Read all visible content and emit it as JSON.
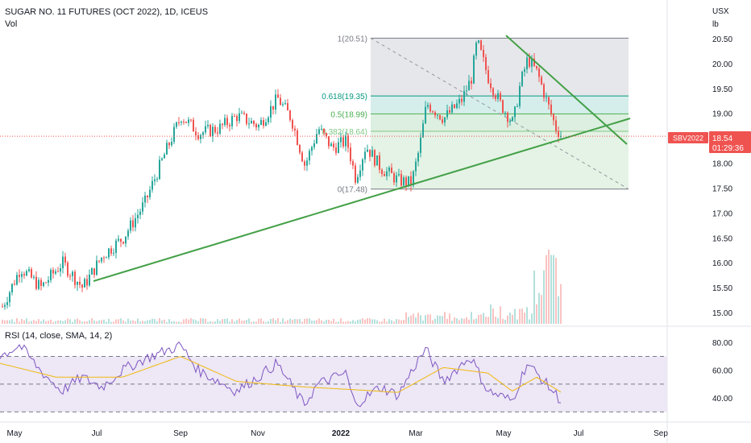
{
  "header": {
    "title": "SUGAR NO. 11 FUTURES (OCT 2022), 1D, ICEUS",
    "volume_label": "Vol"
  },
  "price_scale": {
    "unit_top": "USX",
    "unit_bottom": "lb",
    "ticks": [
      "20.50",
      "20.00",
      "19.50",
      "19.00",
      "18.50",
      "18.00",
      "17.50",
      "17.00",
      "16.50",
      "16.00",
      "15.50",
      "15.00"
    ]
  },
  "last_price": {
    "symbol": "SBV2022",
    "price": "18.54",
    "countdown": "01:29:36",
    "color": "#ef5350"
  },
  "fib": {
    "levels": [
      {
        "label": "1(20.51)",
        "value": 20.51,
        "color": "#787b86"
      },
      {
        "label": "0.618(19.35)",
        "value": 19.35,
        "color": "#089981"
      },
      {
        "label": "0.5(18.99)",
        "value": 18.99,
        "color": "#4caf50"
      },
      {
        "label": "0.382(18.64)",
        "value": 18.64,
        "color": "#81c784"
      },
      {
        "label": "0(17.48)",
        "value": 17.48,
        "color": "#787b86"
      }
    ]
  },
  "rsi": {
    "label": "RSI (14, close, SMA, 14, 2)",
    "ticks": [
      "80.00",
      "60.00",
      "40.00"
    ],
    "upper_band": 70,
    "middle_band": 50,
    "lower_band": 30
  },
  "time_axis": {
    "labels": [
      "May",
      "Jul",
      "Sep",
      "Nov",
      "2022",
      "Mar",
      "May",
      "Jul",
      "Sep"
    ]
  },
  "colors": {
    "up": "#26a69a",
    "down": "#ef5350",
    "trendline": "#43a047",
    "rsi_line": "#7e57c2",
    "rsi_ma": "#f0b90b",
    "rsi_band_fill": "#ede7f6"
  },
  "chart_data": {
    "type": "candlestick",
    "title": "SUGAR NO. 11 FUTURES (OCT 2022), 1D, ICEUS",
    "ylabel": "USX/lb",
    "ylim": [
      14.85,
      20.95
    ],
    "x": [
      "2021-05",
      "2021-07",
      "2021-09",
      "2021-11",
      "2022-01",
      "2022-03",
      "2022-05",
      "2022-07",
      "2022-09"
    ],
    "series": [
      {
        "name": "SBV2022",
        "points": [
          [
            "2021-04-20",
            15.05
          ],
          [
            "2021-05-05",
            15.9
          ],
          [
            "2021-05-20",
            15.5
          ],
          [
            "2021-06-05",
            16.0
          ],
          [
            "2021-06-20",
            15.5
          ],
          [
            "2021-07-05",
            16.15
          ],
          [
            "2021-07-20",
            16.5
          ],
          [
            "2021-08-05",
            17.2
          ],
          [
            "2021-08-20",
            18.2
          ],
          [
            "2021-09-01",
            18.95
          ],
          [
            "2021-09-15",
            18.6
          ],
          [
            "2021-10-01",
            18.7
          ],
          [
            "2021-10-15",
            18.95
          ],
          [
            "2021-11-01",
            18.75
          ],
          [
            "2021-11-15",
            19.3
          ],
          [
            "2021-11-25",
            18.9
          ],
          [
            "2021-12-05",
            17.95
          ],
          [
            "2021-12-15",
            18.7
          ],
          [
            "2021-12-25",
            18.3
          ],
          [
            "2022-01-05",
            18.45
          ],
          [
            "2022-01-12",
            17.7
          ],
          [
            "2022-01-20",
            18.35
          ],
          [
            "2022-02-01",
            17.9
          ],
          [
            "2022-02-15",
            17.65
          ],
          [
            "2022-02-25",
            17.6
          ],
          [
            "2022-03-03",
            18.3
          ],
          [
            "2022-03-08",
            19.2
          ],
          [
            "2022-03-20",
            18.9
          ],
          [
            "2022-04-01",
            19.25
          ],
          [
            "2022-04-08",
            19.7
          ],
          [
            "2022-04-12",
            20.45
          ],
          [
            "2022-04-20",
            19.7
          ],
          [
            "2022-04-28",
            19.2
          ],
          [
            "2022-05-08",
            18.8
          ],
          [
            "2022-05-14",
            19.6
          ],
          [
            "2022-05-20",
            20.1
          ],
          [
            "2022-05-28",
            19.8
          ],
          [
            "2022-06-05",
            19.2
          ],
          [
            "2022-06-12",
            18.7
          ],
          [
            "2022-06-17",
            18.54
          ]
        ]
      }
    ],
    "annotations": {
      "fibonacci_retracement": [
        20.51,
        19.35,
        18.99,
        18.64,
        17.48
      ],
      "ascending_trendline": [
        [
          "2021-07-01",
          15.6
        ],
        [
          "2022-08-15",
          18.9
        ]
      ],
      "descending_trendline": [
        [
          "2022-05-01",
          20.55
        ],
        [
          "2022-08-10",
          18.4
        ]
      ]
    },
    "volume": [
      [
        "2022-04-01",
        16.0
      ],
      [
        "2022-05-20",
        15.95
      ],
      [
        "2022-06-01",
        16.4
      ],
      [
        "2022-06-12",
        16.3
      ]
    ],
    "rsi_ylim": [
      25,
      90
    ],
    "rsi_values": [
      [
        "2021-04-20",
        70
      ],
      [
        "2021-05-05",
        78
      ],
      [
        "2021-05-20",
        60
      ],
      [
        "2021-06-05",
        45
      ],
      [
        "2021-06-20",
        55
      ],
      [
        "2021-07-05",
        48
      ],
      [
        "2021-07-20",
        60
      ],
      [
        "2021-08-05",
        68
      ],
      [
        "2021-09-01",
        78
      ],
      [
        "2021-09-15",
        60
      ],
      [
        "2021-10-01",
        52
      ],
      [
        "2021-10-15",
        45
      ],
      [
        "2021-11-01",
        55
      ],
      [
        "2021-11-15",
        65
      ],
      [
        "2021-12-05",
        35
      ],
      [
        "2021-12-15",
        50
      ],
      [
        "2022-01-05",
        58
      ],
      [
        "2022-01-12",
        35
      ],
      [
        "2022-02-01",
        48
      ],
      [
        "2022-02-15",
        42
      ],
      [
        "2022-03-03",
        68
      ],
      [
        "2022-03-08",
        75
      ],
      [
        "2022-03-20",
        52
      ],
      [
        "2022-04-08",
        70
      ],
      [
        "2022-04-20",
        45
      ],
      [
        "2022-05-08",
        38
      ],
      [
        "2022-05-20",
        65
      ],
      [
        "2022-06-05",
        50
      ],
      [
        "2022-06-17",
        38
      ]
    ],
    "rsi_ma_values": [
      [
        "2021-04-20",
        65
      ],
      [
        "2021-06-01",
        55
      ],
      [
        "2021-07-20",
        55
      ],
      [
        "2021-09-01",
        70
      ],
      [
        "2021-10-15",
        52
      ],
      [
        "2021-12-05",
        48
      ],
      [
        "2022-01-12",
        46
      ],
      [
        "2022-02-15",
        44
      ],
      [
        "2022-03-20",
        62
      ],
      [
        "2022-04-20",
        58
      ],
      [
        "2022-05-08",
        45
      ],
      [
        "2022-05-28",
        55
      ],
      [
        "2022-06-17",
        44
      ]
    ]
  }
}
